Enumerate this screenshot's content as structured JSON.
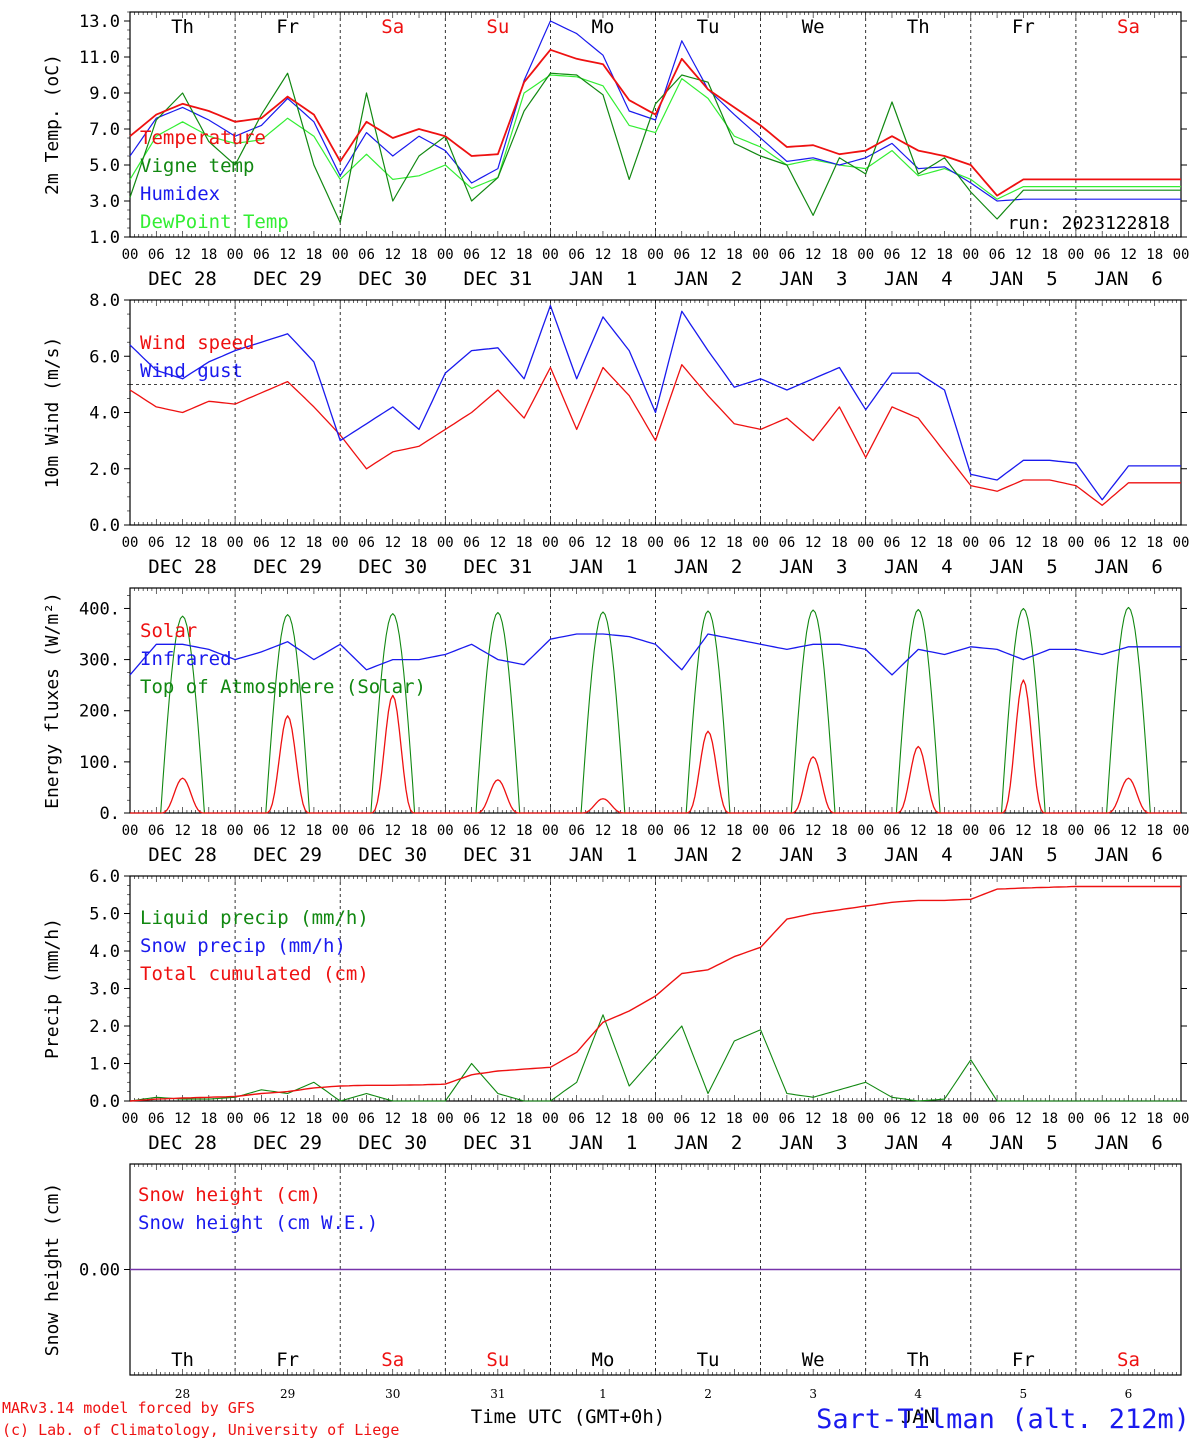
{
  "run_label": "run: 2023122818",
  "footer": {
    "model": "MARv3.14 model forced by GFS",
    "lab": "(c) Lab. of Climatology, University of Liege",
    "time_axis": "Time UTC (GMT+0h)",
    "station": "Sart-Tilman (alt. 212m)",
    "month_label": "JAN"
  },
  "colors": {
    "red": "#ee1111",
    "green": "#118811",
    "blue": "#1a1aee",
    "lightgreen": "#33ee33",
    "purple": "#7733aa",
    "weekend": "#ee1111",
    "weekday": "#000000"
  },
  "days": {
    "weekday": [
      "Th",
      "Fr",
      "Sa",
      "Su",
      "Mo",
      "Tu",
      "We",
      "Th",
      "Fr",
      "Sa"
    ],
    "weekend": [
      false,
      false,
      true,
      true,
      false,
      false,
      false,
      false,
      false,
      true
    ],
    "dates": [
      "DEC 28",
      "DEC 29",
      "DEC 30",
      "DEC 31",
      "JAN  1",
      "JAN  2",
      "JAN  3",
      "JAN  4",
      "JAN  5",
      "JAN  6"
    ],
    "day_numbers": [
      "28",
      "29",
      "30",
      "31",
      "1",
      "2",
      "3",
      "4",
      "5",
      "6"
    ],
    "hour_ticks": [
      "00",
      "06",
      "12",
      "18"
    ],
    "end_tick": "00"
  },
  "chart_data": [
    {
      "type": "line",
      "ylabel": "2m Temp. (oC)",
      "ylim": [
        1.0,
        13.5
      ],
      "yticks": [
        "1.0",
        "3.0",
        "5.0",
        "7.0",
        "9.0",
        "11.0",
        "13.0"
      ],
      "x_unit": "hours since DEC 28 00 UTC",
      "series": [
        {
          "name": "Temperature",
          "color": "red",
          "x": [
            0,
            6,
            12,
            18,
            24,
            30,
            36,
            42,
            48,
            54,
            60,
            66,
            72,
            78,
            84,
            90,
            96,
            102,
            108,
            114,
            120,
            126,
            132,
            138,
            144,
            150,
            156,
            162,
            168,
            174,
            180,
            186,
            192,
            198,
            204,
            210,
            216,
            222,
            228,
            234,
            240
          ],
          "values": [
            6.6,
            7.8,
            8.4,
            8.0,
            7.4,
            7.6,
            8.8,
            7.8,
            5.2,
            7.4,
            6.5,
            7.0,
            6.6,
            5.5,
            5.6,
            9.6,
            11.4,
            10.9,
            10.6,
            8.6,
            7.8,
            10.9,
            9.2,
            8.2,
            7.2,
            6.0,
            6.1,
            5.6,
            5.8,
            6.6,
            5.8,
            5.5,
            5.0,
            3.3,
            4.2,
            4.2,
            4.2,
            4.2,
            4.2,
            4.2,
            4.2
          ]
        },
        {
          "name": "Vigne temp",
          "color": "green",
          "x": [
            0,
            6,
            12,
            18,
            24,
            30,
            36,
            42,
            48,
            54,
            60,
            66,
            72,
            78,
            84,
            90,
            96,
            102,
            108,
            114,
            120,
            126,
            132,
            138,
            144,
            150,
            156,
            162,
            168,
            174,
            180,
            186,
            192,
            198,
            204,
            210,
            216,
            222,
            228,
            234,
            240
          ],
          "values": [
            3.2,
            7.5,
            9.0,
            6.3,
            5.0,
            7.8,
            10.1,
            5.0,
            1.8,
            9.0,
            3.0,
            5.5,
            6.6,
            3.0,
            4.3,
            8.0,
            10.1,
            10.0,
            8.9,
            4.2,
            8.4,
            10.0,
            9.6,
            6.2,
            5.5,
            5.0,
            2.2,
            5.4,
            4.5,
            8.5,
            4.5,
            5.4,
            3.5,
            2.0,
            3.6,
            3.6,
            3.6,
            3.6,
            3.6,
            3.6,
            3.6
          ]
        },
        {
          "name": "Humidex",
          "color": "blue",
          "x": [
            0,
            6,
            12,
            18,
            24,
            30,
            36,
            42,
            48,
            54,
            60,
            66,
            72,
            78,
            84,
            90,
            96,
            102,
            108,
            114,
            120,
            126,
            132,
            138,
            144,
            150,
            156,
            162,
            168,
            174,
            180,
            186,
            192,
            198,
            204,
            210,
            216,
            222,
            228,
            234,
            240
          ],
          "values": [
            5.5,
            7.6,
            8.2,
            7.5,
            6.6,
            7.2,
            8.7,
            7.4,
            4.4,
            6.8,
            5.5,
            6.6,
            5.8,
            4.0,
            4.8,
            9.7,
            13.0,
            12.3,
            11.1,
            8.0,
            7.5,
            11.9,
            9.2,
            7.8,
            6.5,
            5.2,
            5.4,
            5.0,
            5.4,
            6.2,
            4.8,
            4.9,
            4.0,
            3.0,
            3.1,
            3.1,
            3.1,
            3.1,
            3.1,
            3.1,
            3.1
          ]
        },
        {
          "name": "DewPoint Temp",
          "color": "lightgreen",
          "x": [
            0,
            6,
            12,
            18,
            24,
            30,
            36,
            42,
            48,
            54,
            60,
            66,
            72,
            78,
            84,
            90,
            96,
            102,
            108,
            114,
            120,
            126,
            132,
            138,
            144,
            150,
            156,
            162,
            168,
            174,
            180,
            186,
            192,
            198,
            204,
            210,
            216,
            222,
            228,
            234,
            240
          ],
          "values": [
            4.2,
            6.6,
            7.4,
            6.6,
            6.2,
            6.4,
            7.6,
            6.6,
            4.2,
            5.6,
            4.2,
            4.4,
            5.0,
            3.7,
            4.3,
            9.0,
            10.0,
            9.9,
            9.4,
            7.2,
            6.8,
            9.8,
            8.7,
            6.6,
            6.0,
            5.0,
            5.3,
            5.0,
            4.8,
            5.8,
            4.4,
            4.8,
            4.2,
            3.1,
            3.8,
            3.8,
            3.8,
            3.8,
            3.8,
            3.8,
            3.8
          ]
        }
      ]
    },
    {
      "type": "line",
      "ylabel": "10m Wind (m/s)",
      "ylim": [
        0.0,
        8.0
      ],
      "yticks": [
        "0.0",
        "2.0",
        "4.0",
        "6.0",
        "8.0"
      ],
      "reference_line": 5.0,
      "series": [
        {
          "name": "Wind speed",
          "color": "red",
          "x": [
            0,
            6,
            12,
            18,
            24,
            30,
            36,
            42,
            48,
            54,
            60,
            66,
            72,
            78,
            84,
            90,
            96,
            102,
            108,
            114,
            120,
            126,
            132,
            138,
            144,
            150,
            156,
            162,
            168,
            174,
            180,
            186,
            192,
            198,
            204,
            210,
            216,
            222,
            228,
            234,
            240
          ],
          "values": [
            4.8,
            4.2,
            4.0,
            4.4,
            4.3,
            4.7,
            5.1,
            4.2,
            3.2,
            2.0,
            2.6,
            2.8,
            3.4,
            4.0,
            4.8,
            3.8,
            5.6,
            3.4,
            5.6,
            4.6,
            3.0,
            5.7,
            4.6,
            3.6,
            3.4,
            3.8,
            3.0,
            4.2,
            2.4,
            4.2,
            3.8,
            2.6,
            1.4,
            1.2,
            1.6,
            1.6,
            1.4,
            0.7,
            1.5,
            1.5,
            1.5
          ]
        },
        {
          "name": "Wind gust",
          "color": "blue",
          "x": [
            0,
            6,
            12,
            18,
            24,
            30,
            36,
            42,
            48,
            54,
            60,
            66,
            72,
            78,
            84,
            90,
            96,
            102,
            108,
            114,
            120,
            126,
            132,
            138,
            144,
            150,
            156,
            162,
            168,
            174,
            180,
            186,
            192,
            198,
            204,
            210,
            216,
            222,
            228,
            234,
            240
          ],
          "values": [
            6.4,
            5.5,
            5.2,
            5.8,
            6.2,
            6.5,
            6.8,
            5.8,
            3.0,
            3.6,
            4.2,
            3.4,
            5.4,
            6.2,
            6.3,
            5.2,
            7.8,
            5.2,
            7.4,
            6.2,
            4.0,
            7.6,
            6.2,
            4.9,
            5.2,
            4.8,
            5.2,
            5.6,
            4.1,
            5.4,
            5.4,
            4.8,
            1.8,
            1.6,
            2.3,
            2.3,
            2.2,
            0.9,
            2.1,
            2.1,
            2.1
          ]
        }
      ]
    },
    {
      "type": "line",
      "ylabel": "Energy fluxes (W/m2)",
      "ylim": [
        0,
        440
      ],
      "yticks": [
        "0.",
        "100.",
        "200.",
        "300.",
        "400."
      ],
      "series": [
        {
          "name": "Solar",
          "color": "red",
          "day_peaks": [
            68,
            190,
            230,
            65,
            28,
            160,
            110,
            130,
            260,
            68
          ]
        },
        {
          "name": "Infrared",
          "color": "blue",
          "x": [
            0,
            6,
            12,
            18,
            24,
            30,
            36,
            42,
            48,
            54,
            60,
            66,
            72,
            78,
            84,
            90,
            96,
            102,
            108,
            114,
            120,
            126,
            132,
            138,
            144,
            150,
            156,
            162,
            168,
            174,
            180,
            186,
            192,
            198,
            204,
            210,
            216,
            222,
            228,
            234,
            240
          ],
          "values": [
            270,
            330,
            330,
            320,
            300,
            315,
            335,
            300,
            330,
            280,
            300,
            300,
            310,
            330,
            300,
            290,
            340,
            350,
            350,
            345,
            330,
            280,
            350,
            340,
            330,
            320,
            330,
            330,
            320,
            270,
            320,
            310,
            325,
            320,
            300,
            320,
            320,
            310,
            325,
            325,
            325
          ]
        },
        {
          "name": "Top of Atmosphere (Solar)",
          "color": "green",
          "day_peaks": [
            385,
            388,
            390,
            392,
            393,
            395,
            397,
            398,
            400,
            402
          ]
        }
      ]
    },
    {
      "type": "line",
      "ylabel": "Precip (mm/h)",
      "ylim": [
        0.0,
        6.0
      ],
      "yticks": [
        "0.0",
        "1.0",
        "2.0",
        "3.0",
        "4.0",
        "5.0",
        "6.0"
      ],
      "series": [
        {
          "name": "Liquid precip (mm/h)",
          "color": "green",
          "x": [
            0,
            6,
            12,
            18,
            24,
            30,
            36,
            42,
            48,
            54,
            60,
            66,
            72,
            78,
            84,
            90,
            96,
            102,
            108,
            114,
            120,
            126,
            132,
            138,
            144,
            150,
            156,
            162,
            168,
            174,
            180,
            186,
            192,
            198,
            204,
            210,
            216,
            222,
            228,
            234,
            240
          ],
          "values": [
            0,
            0.1,
            0.05,
            0.05,
            0.1,
            0.3,
            0.2,
            0.5,
            0,
            0.2,
            0,
            0,
            0,
            1.0,
            0.2,
            0,
            0,
            0.5,
            2.3,
            0.4,
            1.2,
            2.0,
            0.2,
            1.6,
            1.9,
            0.2,
            0.1,
            0.3,
            0.5,
            0.1,
            0,
            0.05,
            1.1,
            0,
            0,
            0,
            0,
            0,
            0,
            0,
            0
          ]
        },
        {
          "name": "Snow precip (mm/h)",
          "color": "blue",
          "x": [
            0,
            240
          ],
          "values": [
            0,
            0
          ]
        },
        {
          "name": "Total cumulated (cm)",
          "color": "red",
          "x": [
            0,
            6,
            12,
            18,
            24,
            30,
            36,
            42,
            48,
            54,
            60,
            66,
            72,
            78,
            84,
            90,
            96,
            102,
            108,
            114,
            120,
            126,
            132,
            138,
            144,
            150,
            156,
            162,
            168,
            174,
            180,
            186,
            192,
            198,
            204,
            210,
            216,
            222,
            228,
            234,
            240
          ],
          "values": [
            0,
            0.05,
            0.08,
            0.1,
            0.12,
            0.2,
            0.25,
            0.35,
            0.4,
            0.42,
            0.42,
            0.43,
            0.45,
            0.7,
            0.8,
            0.85,
            0.9,
            1.3,
            2.1,
            2.4,
            2.8,
            3.4,
            3.5,
            3.85,
            4.1,
            4.85,
            5.0,
            5.1,
            5.2,
            5.3,
            5.35,
            5.35,
            5.38,
            5.65,
            5.68,
            5.7,
            5.72,
            5.72,
            5.72,
            5.72,
            5.72
          ]
        }
      ]
    },
    {
      "type": "line",
      "ylabel": "Snow height (cm)",
      "yticks": [
        "0.00"
      ],
      "series": [
        {
          "name": "Snow height (cm)",
          "color": "red",
          "x": [
            0,
            240
          ],
          "values": [
            0,
            0
          ]
        },
        {
          "name": "Snow height (cm W.E.)",
          "color": "blue",
          "x": [
            0,
            240
          ],
          "values": [
            0,
            0
          ]
        }
      ]
    }
  ]
}
